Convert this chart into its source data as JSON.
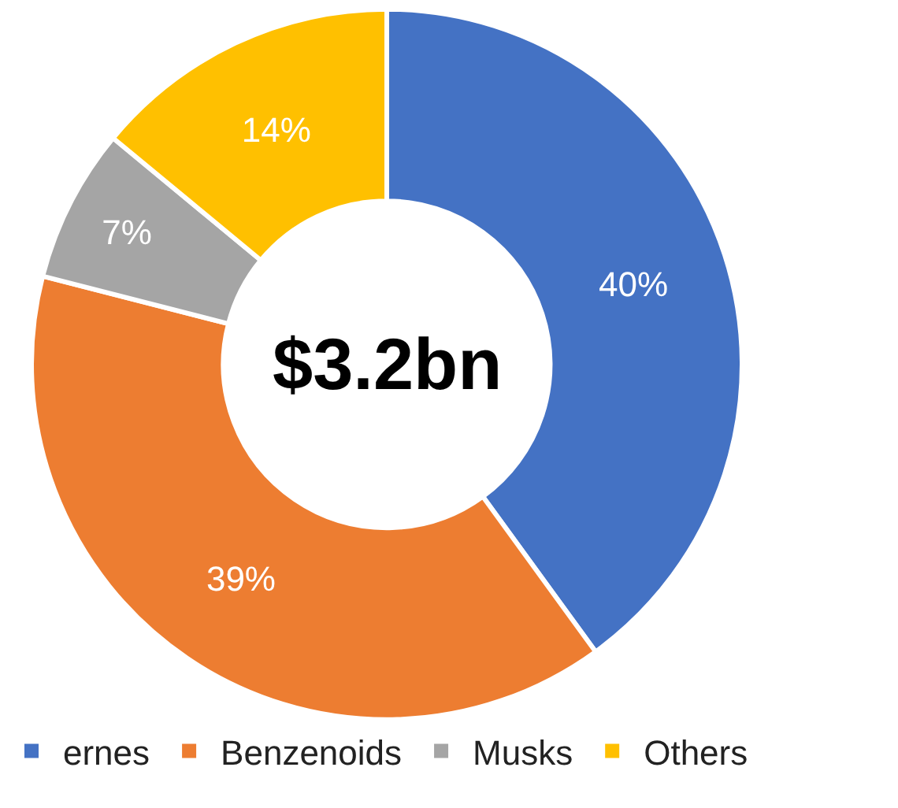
{
  "chart_data": {
    "type": "donut",
    "categories": [
      "ernes",
      "Benzenoids",
      "Musks",
      "Others"
    ],
    "values": [
      40,
      39,
      7,
      14
    ],
    "colors": [
      "#4472c4",
      "#ed7d31",
      "#a5a5a5",
      "#ffc000"
    ],
    "value_labels": [
      "40%",
      "39%",
      "7%",
      "14%"
    ],
    "annotations": [
      "$3.2bn"
    ],
    "legend": "bottom"
  }
}
